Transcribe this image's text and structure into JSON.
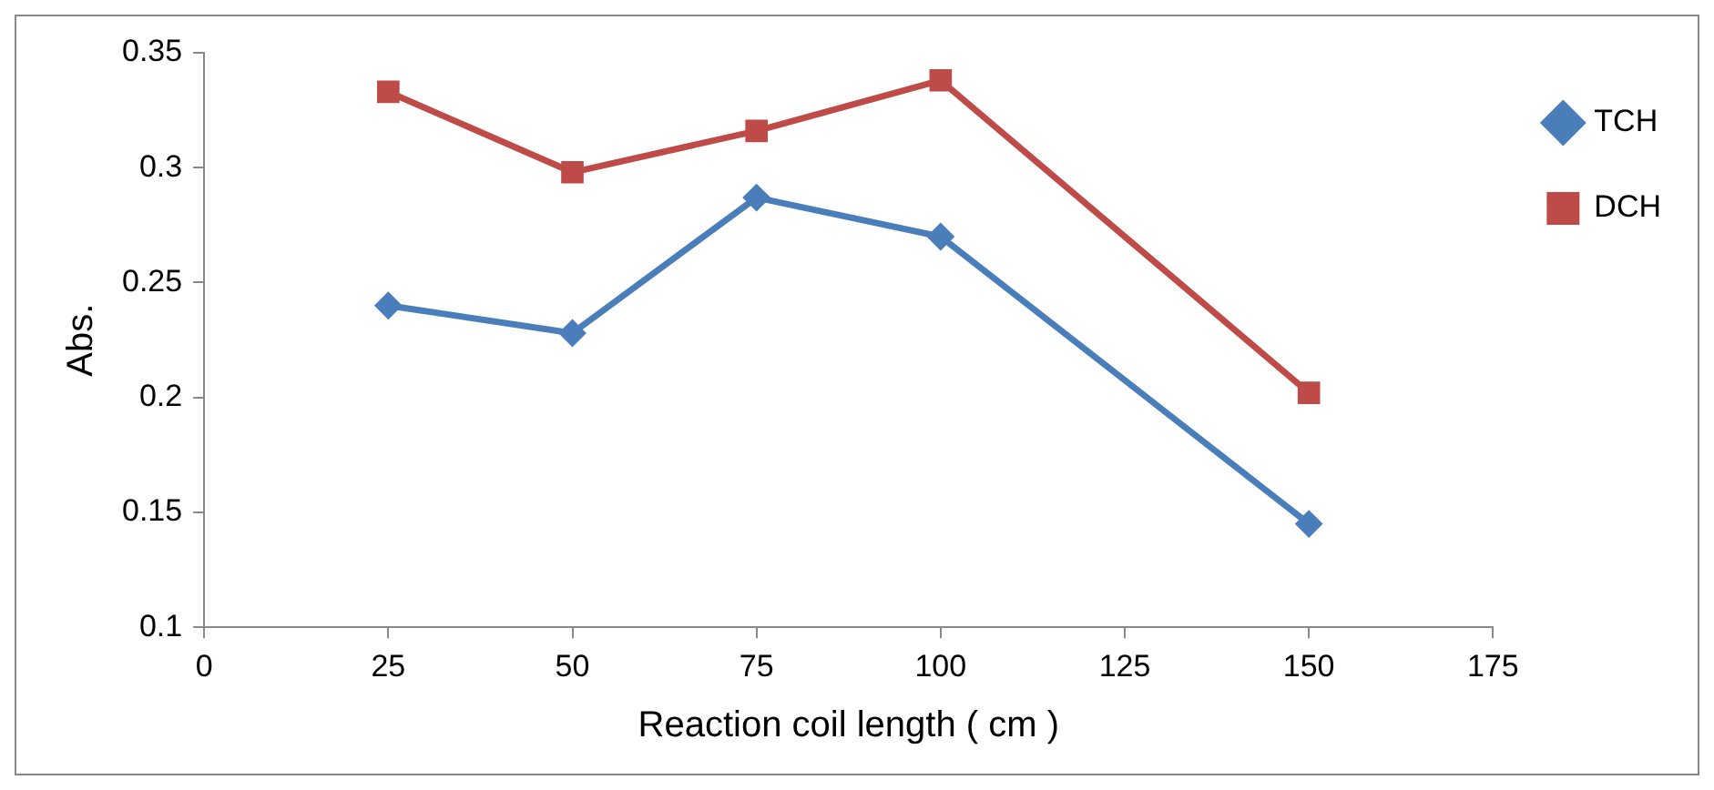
{
  "chart_data": {
    "type": "line",
    "xlabel": "Reaction coil length ( cm )",
    "ylabel": "Abs.",
    "x": [
      25,
      50,
      75,
      100,
      150
    ],
    "series": [
      {
        "name": "TCH",
        "color": "#4a7ebb",
        "marker": "diamond",
        "values": [
          0.24,
          0.228,
          0.287,
          0.27,
          0.145
        ]
      },
      {
        "name": "DCH",
        "color": "#be4b48",
        "marker": "square",
        "values": [
          0.333,
          0.298,
          0.316,
          0.338,
          0.202
        ]
      }
    ],
    "xlim": [
      0,
      175
    ],
    "xticks": [
      0,
      25,
      50,
      75,
      100,
      125,
      150,
      175
    ],
    "ylim": [
      0.1,
      0.35
    ],
    "yticks": [
      0.1,
      0.15,
      0.2,
      0.25,
      0.3,
      0.35
    ],
    "grid": false,
    "legend": "right",
    "line_style": "solid"
  }
}
